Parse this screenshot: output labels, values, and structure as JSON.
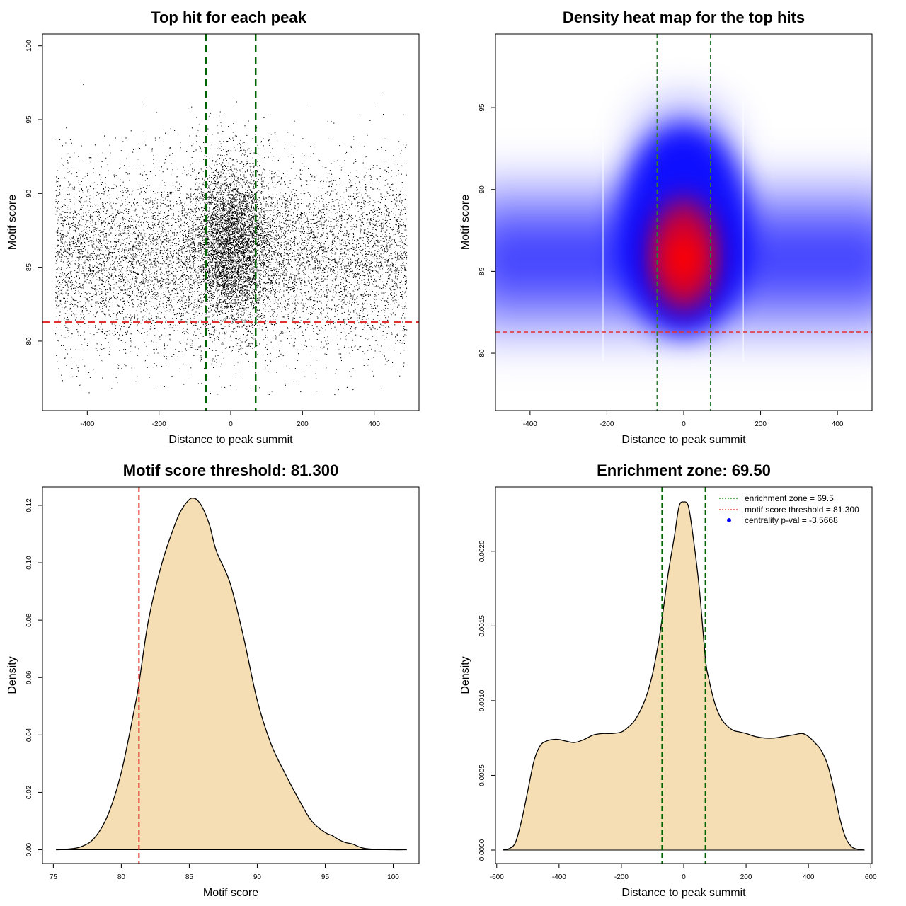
{
  "chart_data": [
    {
      "id": "scatter",
      "type": "scatter",
      "title": "Top hit for each peak",
      "xlabel": "Distance to peak summit",
      "ylabel": "Motif score",
      "xlim": [
        -525,
        525
      ],
      "ylim": [
        75.3,
        100.8
      ],
      "xticks": [
        -400,
        -200,
        0,
        200,
        400
      ],
      "yticks": [
        80,
        85,
        90,
        95,
        100
      ],
      "x_range": [
        -490,
        490
      ],
      "points_note": "about 14000 points, dense around x=0, y=86",
      "vlines": [
        -69.5,
        69.5
      ],
      "hline": 81.3,
      "vline_color": "#006400",
      "hline_color": "#e03030"
    },
    {
      "id": "heatmap",
      "type": "heatmap",
      "title": "Density heat map for the top hits",
      "xlabel": "Distance to peak summit",
      "ylabel": "Motif score",
      "xlim": [
        -490,
        490
      ],
      "ylim": [
        76.5,
        99.5
      ],
      "xticks": [
        -400,
        -200,
        0,
        200,
        400
      ],
      "yticks": [
        80,
        85,
        90,
        95
      ],
      "peak": [
        0,
        86
      ],
      "vlines": [
        -69.5,
        69.5
      ],
      "hline": 81.3,
      "low_color": "#0000ff",
      "high_color": "#ff0000"
    },
    {
      "id": "score_density",
      "type": "area",
      "title": "Motif score threshold: 81.300",
      "xlabel": "Motif score",
      "ylabel": "Density",
      "xlim": [
        74.2,
        101.9
      ],
      "ylim": [
        -0.0048,
        0.1264
      ],
      "xticks": [
        75,
        80,
        85,
        90,
        95,
        100
      ],
      "ytick_labels": [
        "0.00",
        "0.02",
        "0.04",
        "0.06",
        "0.08",
        "0.10",
        "0.12"
      ],
      "yticks": [
        0,
        0.02,
        0.04,
        0.06,
        0.08,
        0.1,
        0.12
      ],
      "x": [
        75.2,
        76,
        77,
        78,
        79,
        80,
        81,
        81.3,
        82,
        83,
        84,
        84.5,
        85,
        85.3,
        85.6,
        86,
        86.5,
        87,
        88,
        89,
        90,
        91,
        92,
        93,
        94,
        95,
        95.5,
        96,
        96.5,
        97,
        97.5,
        98,
        99,
        100,
        101
      ],
      "y": [
        0,
        0.0002,
        0.001,
        0.004,
        0.012,
        0.027,
        0.05,
        0.058,
        0.08,
        0.1,
        0.114,
        0.119,
        0.122,
        0.1225,
        0.1218,
        0.119,
        0.113,
        0.104,
        0.093,
        0.074,
        0.052,
        0.037,
        0.027,
        0.018,
        0.01,
        0.006,
        0.005,
        0.0035,
        0.0025,
        0.002,
        0.001,
        0.0004,
        0.0001,
        0,
        0
      ],
      "fill": "#f5deb3",
      "vline": 81.3,
      "vline_color": "#e03030"
    },
    {
      "id": "distance_density",
      "type": "area",
      "title": "Enrichment zone: 69.50",
      "xlabel": "Distance to peak summit",
      "ylabel": "Density",
      "xlim": [
        -604,
        604
      ],
      "ylim": [
        -9e-05,
        0.00243
      ],
      "xticks": [
        -600,
        -400,
        -200,
        0,
        200,
        400,
        600
      ],
      "ytick_labels": [
        "0.0000",
        "0.0005",
        "0.0010",
        "0.0015",
        "0.0020"
      ],
      "yticks": [
        0,
        0.0005,
        0.001,
        0.0015,
        0.002
      ],
      "x": [
        -580,
        -560,
        -540,
        -520,
        -500,
        -480,
        -460,
        -440,
        -420,
        -400,
        -380,
        -350,
        -320,
        -290,
        -260,
        -230,
        -200,
        -180,
        -160,
        -140,
        -120,
        -100,
        -80,
        -69.5,
        -50,
        -30,
        -15,
        0,
        15,
        30,
        50,
        69.5,
        80,
        100,
        120,
        140,
        160,
        180,
        200,
        230,
        260,
        290,
        320,
        350,
        380,
        400,
        420,
        440,
        460,
        480,
        500,
        520,
        540,
        560,
        580
      ],
      "y": [
        0,
        1e-05,
        5e-05,
        0.0002,
        0.0004,
        0.0006,
        0.0007,
        0.00073,
        0.00074,
        0.00074,
        0.00073,
        0.00072,
        0.00074,
        0.00077,
        0.00078,
        0.00078,
        0.00079,
        0.00082,
        0.00086,
        0.00093,
        0.00103,
        0.00118,
        0.0014,
        0.00155,
        0.00185,
        0.0021,
        0.0023,
        0.00233,
        0.0023,
        0.0021,
        0.00175,
        0.00128,
        0.00115,
        0.00098,
        0.00088,
        0.00083,
        0.0008,
        0.00079,
        0.00078,
        0.00076,
        0.00075,
        0.00075,
        0.00076,
        0.00077,
        0.00078,
        0.00076,
        0.00072,
        0.00067,
        0.00058,
        0.00042,
        0.00022,
        8e-05,
        2e-05,
        5e-06,
        0
      ],
      "fill": "#f5deb3",
      "vlines": [
        -69.5,
        69.5
      ],
      "vline_color": "#006400",
      "legend": {
        "items": [
          {
            "label": "enrichment zone = 69.5",
            "color": "#008000",
            "kind": "dotted-line"
          },
          {
            "label": "motif score threshold = 81.300",
            "color": "#e03030",
            "kind": "dotted-line"
          },
          {
            "label": "centrality p-val = -3.5668",
            "color": "#0000ff",
            "kind": "dot"
          }
        ]
      }
    }
  ]
}
